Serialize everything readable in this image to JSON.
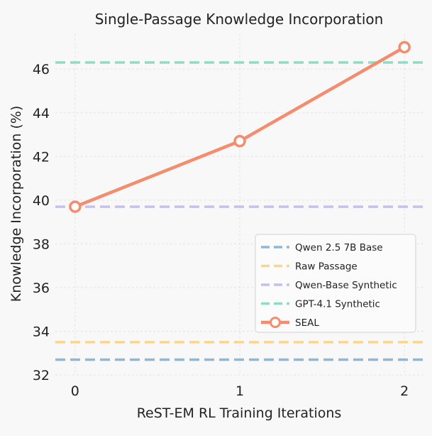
{
  "chart_data": {
    "type": "line",
    "title": "Single-Passage Knowledge Incorporation",
    "xlabel": "ReST-EM RL Training Iterations",
    "ylabel": "Knowledge Incorporation (%)",
    "x": [
      0,
      1,
      2
    ],
    "x_tick_labels": [
      "0",
      "1",
      "2"
    ],
    "xlim": [
      -0.12,
      2.12
    ],
    "ylim": [
      32,
      47.6
    ],
    "y_ticks": [
      32,
      34,
      36,
      38,
      40,
      42,
      44,
      46
    ],
    "y_tick_labels": [
      "32",
      "34",
      "36",
      "38",
      "40",
      "42",
      "44",
      "46"
    ],
    "grid": true,
    "legend_position": "right, below middle",
    "baselines": [
      {
        "name": "Qwen 2.5 7B Base",
        "value": 32.7,
        "color": "#8fb8d8",
        "style": "dashed"
      },
      {
        "name": "Raw Passage",
        "value": 33.5,
        "color": "#fdd58a",
        "style": "dashed"
      },
      {
        "name": "Qwen-Base Synthetic",
        "value": 39.7,
        "color": "#c5c0ec",
        "style": "dashed"
      },
      {
        "name": "GPT-4.1 Synthetic",
        "value": 46.3,
        "color": "#8fdcc2",
        "style": "dashed"
      }
    ],
    "series": [
      {
        "name": "SEAL",
        "values": [
          39.7,
          42.7,
          47.0
        ],
        "color": "#f48c6e",
        "marker": "hollow-circle"
      }
    ]
  }
}
